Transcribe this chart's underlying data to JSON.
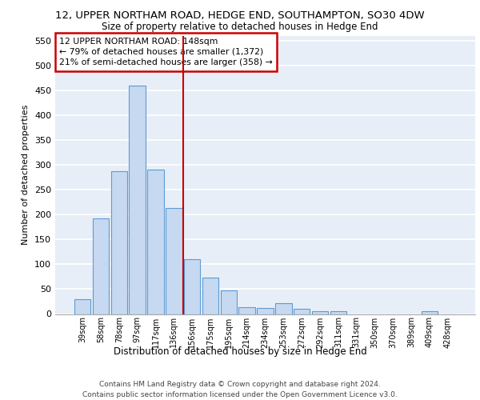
{
  "title_line1": "12, UPPER NORTHAM ROAD, HEDGE END, SOUTHAMPTON, SO30 4DW",
  "title_line2": "Size of property relative to detached houses in Hedge End",
  "xlabel": "Distribution of detached houses by size in Hedge End",
  "ylabel": "Number of detached properties",
  "categories": [
    "39sqm",
    "58sqm",
    "78sqm",
    "97sqm",
    "117sqm",
    "136sqm",
    "156sqm",
    "175sqm",
    "195sqm",
    "214sqm",
    "234sqm",
    "253sqm",
    "272sqm",
    "292sqm",
    "311sqm",
    "331sqm",
    "350sqm",
    "370sqm",
    "389sqm",
    "409sqm",
    "428sqm"
  ],
  "values": [
    30,
    192,
    287,
    460,
    291,
    213,
    110,
    74,
    47,
    13,
    12,
    21,
    10,
    5,
    5,
    0,
    0,
    0,
    0,
    5,
    0
  ],
  "bar_color": "#c6d9f0",
  "bar_edge_color": "#5b9bd5",
  "vline_x": 5.5,
  "vline_color": "#cc0000",
  "annotation_text": "12 UPPER NORTHAM ROAD: 148sqm\n← 79% of detached houses are smaller (1,372)\n21% of semi-detached houses are larger (358) →",
  "annotation_box_color": "#cc0000",
  "ylim": [
    0,
    560
  ],
  "yticks": [
    0,
    50,
    100,
    150,
    200,
    250,
    300,
    350,
    400,
    450,
    500,
    550
  ],
  "footer_line1": "Contains HM Land Registry data © Crown copyright and database right 2024.",
  "footer_line2": "Contains public sector information licensed under the Open Government Licence v3.0.",
  "bg_color": "#e8eef7",
  "grid_color": "#ffffff"
}
